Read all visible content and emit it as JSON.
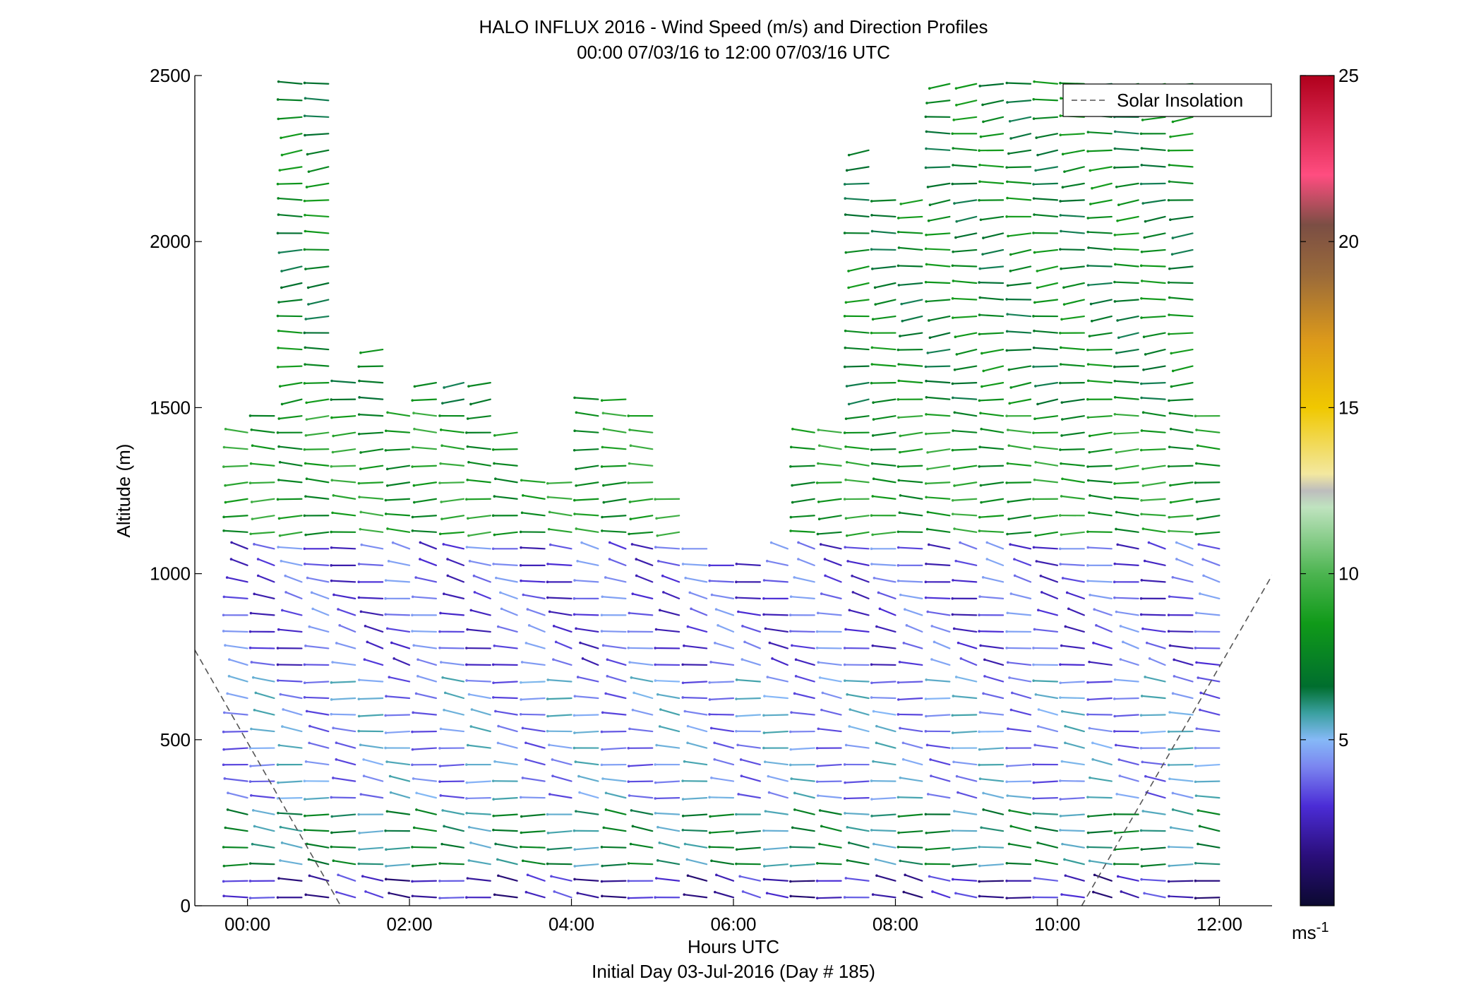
{
  "chart_data": {
    "type": "quiver",
    "title": "HALO INFLUX 2016 - Wind Speed (m/s) and Direction Profiles",
    "subtitle": "00:00 07/03/16 to 12:00 07/03/16  UTC",
    "xlabel": "Hours UTC",
    "xlabel2": "Initial Day 03-Jul-2016 (Day # 185)",
    "ylabel": "Altitude (m)",
    "x_unit": "hours",
    "xlim": [
      -0.65,
      12.65
    ],
    "ylim": [
      0,
      2500
    ],
    "x_ticks": [
      0,
      2,
      4,
      6,
      8,
      10,
      12
    ],
    "x_tick_labels": [
      "00:00",
      "02:00",
      "04:00",
      "06:00",
      "08:00",
      "10:00",
      "12:00"
    ],
    "y_ticks": [
      0,
      500,
      1000,
      1500,
      2000,
      2500
    ],
    "y_tick_labels": [
      "0",
      "500",
      "1000",
      "1500",
      "2000",
      "2500"
    ],
    "colorbar": {
      "range": [
        0,
        25
      ],
      "ticks": [
        5,
        10,
        15,
        20,
        25
      ],
      "tick_labels": [
        "5",
        "10",
        "15",
        "20",
        "25"
      ],
      "unit_label": "ms",
      "unit_exponent": "-1",
      "colors": [
        {
          "v": 0,
          "c": "#0b0930"
        },
        {
          "v": 1.5,
          "c": "#2a0e7a"
        },
        {
          "v": 3,
          "c": "#4b2cd6"
        },
        {
          "v": 4.2,
          "c": "#7b86f0"
        },
        {
          "v": 5,
          "c": "#86b9f7"
        },
        {
          "v": 5.8,
          "c": "#3aa0a0"
        },
        {
          "v": 6.6,
          "c": "#006e2e"
        },
        {
          "v": 8.5,
          "c": "#109a19"
        },
        {
          "v": 10,
          "c": "#4cb450"
        },
        {
          "v": 12,
          "c": "#bfe3bf"
        },
        {
          "v": 12.5,
          "c": "#bdbdbd"
        },
        {
          "v": 13,
          "c": "#f3e8a0"
        },
        {
          "v": 15,
          "c": "#f0c800"
        },
        {
          "v": 17,
          "c": "#dd9a1a"
        },
        {
          "v": 19,
          "c": "#9a6a3a"
        },
        {
          "v": 20.5,
          "c": "#7b4e44"
        },
        {
          "v": 22,
          "c": "#ff4d80"
        },
        {
          "v": 25,
          "c": "#b0001c"
        }
      ]
    },
    "legend": {
      "position": "top-right",
      "entries": [
        "Solar Insolation"
      ]
    },
    "solar_insolation": {
      "style": "dashed",
      "color": "#555555",
      "segments": [
        {
          "x": [
            -0.65,
            1.15
          ],
          "y": [
            770,
            0
          ]
        },
        {
          "x": [
            10.3,
            12.65
          ],
          "y": [
            0,
            995
          ]
        }
      ]
    },
    "profile_times": [
      0.0,
      0.33,
      0.67,
      1.0,
      1.33,
      1.67,
      2.0,
      2.33,
      2.67,
      3.0,
      3.33,
      3.67,
      4.0,
      4.33,
      4.67,
      5.0,
      5.33,
      5.67,
      6.0,
      6.33,
      6.67,
      7.0,
      7.33,
      7.67,
      8.0,
      8.33,
      8.67,
      9.0,
      9.33,
      9.67,
      10.0,
      10.33,
      10.67,
      11.0,
      11.33,
      11.67,
      12.0
    ],
    "profile_top_altitude": [
      1450,
      1500,
      2500,
      2500,
      1600,
      1700,
      1500,
      1600,
      1600,
      1600,
      1450,
      1300,
      1300,
      1550,
      1550,
      1500,
      1250,
      1100,
      1050,
      1050,
      1100,
      1450,
      1450,
      2300,
      2150,
      2150,
      2500,
      2500,
      2500,
      2500,
      2500,
      2500,
      2500,
      2500,
      2500,
      2500,
      1500
    ],
    "wind_layers": [
      {
        "alt": [
          0,
          120
        ],
        "speed_mps": 2.5,
        "dir_deg": 70
      },
      {
        "alt": [
          120,
          300
        ],
        "speed_mps": 6.5,
        "dir_deg": 80
      },
      {
        "alt": [
          300,
          700
        ],
        "speed_mps": 4.5,
        "dir_deg": 75
      },
      {
        "alt": [
          700,
          1100
        ],
        "speed_mps": 3.5,
        "dir_deg": 65
      },
      {
        "alt": [
          1100,
          1500
        ],
        "speed_mps": 8.5,
        "dir_deg": 90
      },
      {
        "alt": [
          1500,
          2500
        ],
        "speed_mps": 7.5,
        "dir_deg": 100
      }
    ]
  }
}
